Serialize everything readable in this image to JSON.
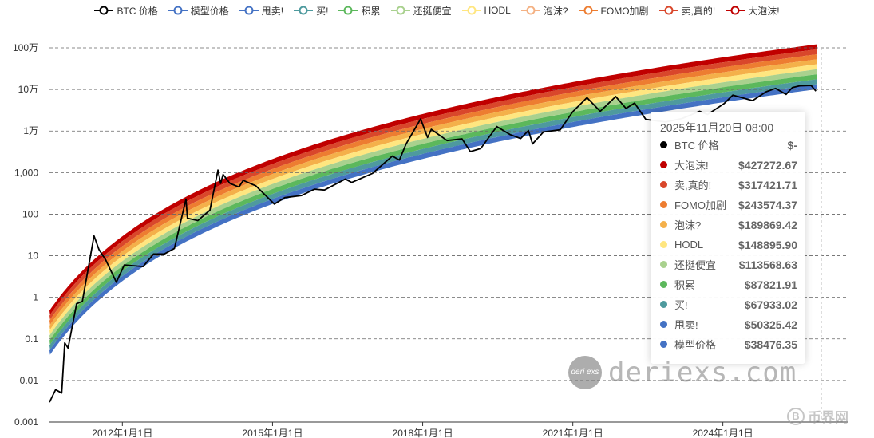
{
  "chart_data": {
    "type": "area",
    "title": "",
    "xlabel": "",
    "ylabel": "",
    "yscale": "log",
    "ylim": [
      0.001,
      1000000
    ],
    "xlim": [
      "2010-07-18",
      "2026-06-30"
    ],
    "y_ticks": [
      "0.001",
      "0.01",
      "0.1",
      "1",
      "10",
      "100",
      "1,000",
      "1万",
      "10万",
      "100万"
    ],
    "x_ticks": [
      "2012年1月1日",
      "2015年1月1日",
      "2018年1月1日",
      "2021年1月1日",
      "2024年1月1日"
    ],
    "grid": true,
    "legend_position": "top",
    "legend": [
      {
        "label": "BTC 价格",
        "color": "#000000"
      },
      {
        "label": "模型价格",
        "color": "#4472c4"
      },
      {
        "label": "甩卖!",
        "color": "#4472c4"
      },
      {
        "label": "买!",
        "color": "#4e9a9e"
      },
      {
        "label": "积累",
        "color": "#5cb85c"
      },
      {
        "label": "还挺便宜",
        "color": "#a9d18e"
      },
      {
        "label": "HODL",
        "color": "#ffe680"
      },
      {
        "label": "泡沫?",
        "color": "#f4b183"
      },
      {
        "label": "FOMO加剧",
        "color": "#ed7d31"
      },
      {
        "label": "卖,真的!",
        "color": "#d9472b"
      },
      {
        "label": "大泡沫!",
        "color": "#c00000"
      }
    ],
    "bands": [
      {
        "name": "大泡沫!",
        "color": "#c00000"
      },
      {
        "name": "卖,真的!",
        "color": "#d9472b"
      },
      {
        "name": "FOMO加剧",
        "color": "#ed7d31"
      },
      {
        "name": "泡沫?",
        "color": "#f4b04a"
      },
      {
        "name": "HODL",
        "color": "#ffe680"
      },
      {
        "name": "还挺便宜",
        "color": "#a9d18e"
      },
      {
        "name": "积累",
        "color": "#5cb85c"
      },
      {
        "name": "买!",
        "color": "#4e9a9e"
      },
      {
        "name": "甩卖!",
        "color": "#4472c4"
      }
    ],
    "btc_price": [
      {
        "date": "2010-07-18",
        "value": 0.003
      },
      {
        "date": "2010-09-01",
        "value": 0.006
      },
      {
        "date": "2010-10-15",
        "value": 0.005
      },
      {
        "date": "2010-11-06",
        "value": 0.08
      },
      {
        "date": "2010-12-01",
        "value": 0.06
      },
      {
        "date": "2011-02-01",
        "value": 0.7
      },
      {
        "date": "2011-03-15",
        "value": 0.8
      },
      {
        "date": "2011-06-08",
        "value": 30
      },
      {
        "date": "2011-07-15",
        "value": 14
      },
      {
        "date": "2011-09-01",
        "value": 8
      },
      {
        "date": "2011-11-18",
        "value": 2.3
      },
      {
        "date": "2012-01-15",
        "value": 6
      },
      {
        "date": "2012-06-01",
        "value": 5.5
      },
      {
        "date": "2012-08-15",
        "value": 11
      },
      {
        "date": "2012-11-01",
        "value": 11
      },
      {
        "date": "2013-01-15",
        "value": 15
      },
      {
        "date": "2013-04-09",
        "value": 230
      },
      {
        "date": "2013-04-20",
        "value": 80
      },
      {
        "date": "2013-07-05",
        "value": 70
      },
      {
        "date": "2013-10-01",
        "value": 125
      },
      {
        "date": "2013-11-29",
        "value": 1150
      },
      {
        "date": "2013-12-18",
        "value": 550
      },
      {
        "date": "2014-01-05",
        "value": 900
      },
      {
        "date": "2014-02-25",
        "value": 550
      },
      {
        "date": "2014-05-01",
        "value": 450
      },
      {
        "date": "2014-06-01",
        "value": 650
      },
      {
        "date": "2014-09-01",
        "value": 480
      },
      {
        "date": "2015-01-14",
        "value": 175
      },
      {
        "date": "2015-04-01",
        "value": 250
      },
      {
        "date": "2015-08-01",
        "value": 280
      },
      {
        "date": "2015-11-04",
        "value": 400
      },
      {
        "date": "2016-01-15",
        "value": 380
      },
      {
        "date": "2016-06-15",
        "value": 700
      },
      {
        "date": "2016-08-01",
        "value": 580
      },
      {
        "date": "2016-12-31",
        "value": 960
      },
      {
        "date": "2017-05-25",
        "value": 2500
      },
      {
        "date": "2017-07-15",
        "value": 2000
      },
      {
        "date": "2017-09-01",
        "value": 4800
      },
      {
        "date": "2017-12-17",
        "value": 19500
      },
      {
        "date": "2018-02-06",
        "value": 7000
      },
      {
        "date": "2018-03-05",
        "value": 11000
      },
      {
        "date": "2018-06-28",
        "value": 5900
      },
      {
        "date": "2018-10-15",
        "value": 6500
      },
      {
        "date": "2018-12-15",
        "value": 3200
      },
      {
        "date": "2019-03-01",
        "value": 3800
      },
      {
        "date": "2019-06-26",
        "value": 12800
      },
      {
        "date": "2019-10-01",
        "value": 8200
      },
      {
        "date": "2019-12-17",
        "value": 6600
      },
      {
        "date": "2020-02-12",
        "value": 10300
      },
      {
        "date": "2020-03-13",
        "value": 4900
      },
      {
        "date": "2020-06-01",
        "value": 9500
      },
      {
        "date": "2020-10-01",
        "value": 10700
      },
      {
        "date": "2020-12-31",
        "value": 29000
      },
      {
        "date": "2021-04-14",
        "value": 63500
      },
      {
        "date": "2021-07-20",
        "value": 29800
      },
      {
        "date": "2021-11-10",
        "value": 67500
      },
      {
        "date": "2022-01-24",
        "value": 35000
      },
      {
        "date": "2022-03-28",
        "value": 47000
      },
      {
        "date": "2022-06-18",
        "value": 19000
      },
      {
        "date": "2022-11-09",
        "value": 16500
      },
      {
        "date": "2023-03-10",
        "value": 20000
      },
      {
        "date": "2023-07-15",
        "value": 30000
      },
      {
        "date": "2023-09-11",
        "value": 25000
      },
      {
        "date": "2024-01-11",
        "value": 46000
      },
      {
        "date": "2024-03-14",
        "value": 73000
      },
      {
        "date": "2024-08-05",
        "value": 54000
      },
      {
        "date": "2024-11-12",
        "value": 88000
      },
      {
        "date": "2025-01-20",
        "value": 106000
      },
      {
        "date": "2025-04-07",
        "value": 76000
      },
      {
        "date": "2025-05-22",
        "value": 111000
      },
      {
        "date": "2025-07-14",
        "value": 122000
      },
      {
        "date": "2025-10-06",
        "value": 125000
      },
      {
        "date": "2025-11-10",
        "value": 91000
      }
    ],
    "tooltip": {
      "date": "2025年11月20日 08:00",
      "rows": [
        {
          "name": "BTC 价格",
          "value": "$-",
          "color": "#000000"
        },
        {
          "name": "大泡沫!",
          "value": "$427272.67",
          "color": "#c00000"
        },
        {
          "name": "卖,真的!",
          "value": "$317421.71",
          "color": "#d9472b"
        },
        {
          "name": "FOMO加剧",
          "value": "$243574.37",
          "color": "#ed7d31"
        },
        {
          "name": "泡沫?",
          "value": "$189869.42",
          "color": "#f4b04a"
        },
        {
          "name": "HODL",
          "value": "$148895.90",
          "color": "#ffe680"
        },
        {
          "name": "还挺便宜",
          "value": "$113568.63",
          "color": "#a9d18e"
        },
        {
          "name": "积累",
          "value": "$87821.91",
          "color": "#5cb85c"
        },
        {
          "name": "买!",
          "value": "$67933.02",
          "color": "#4e9a9e"
        },
        {
          "name": "甩卖!",
          "value": "$50325.42",
          "color": "#4472c4"
        },
        {
          "name": "模型价格",
          "value": "$38476.35",
          "color": "#4472c4"
        }
      ]
    }
  },
  "watermark": {
    "text": "deriexs.com",
    "logo_text": "deri exs"
  },
  "corner_logo": {
    "text": "币界网",
    "icon": "b-coin-icon"
  }
}
